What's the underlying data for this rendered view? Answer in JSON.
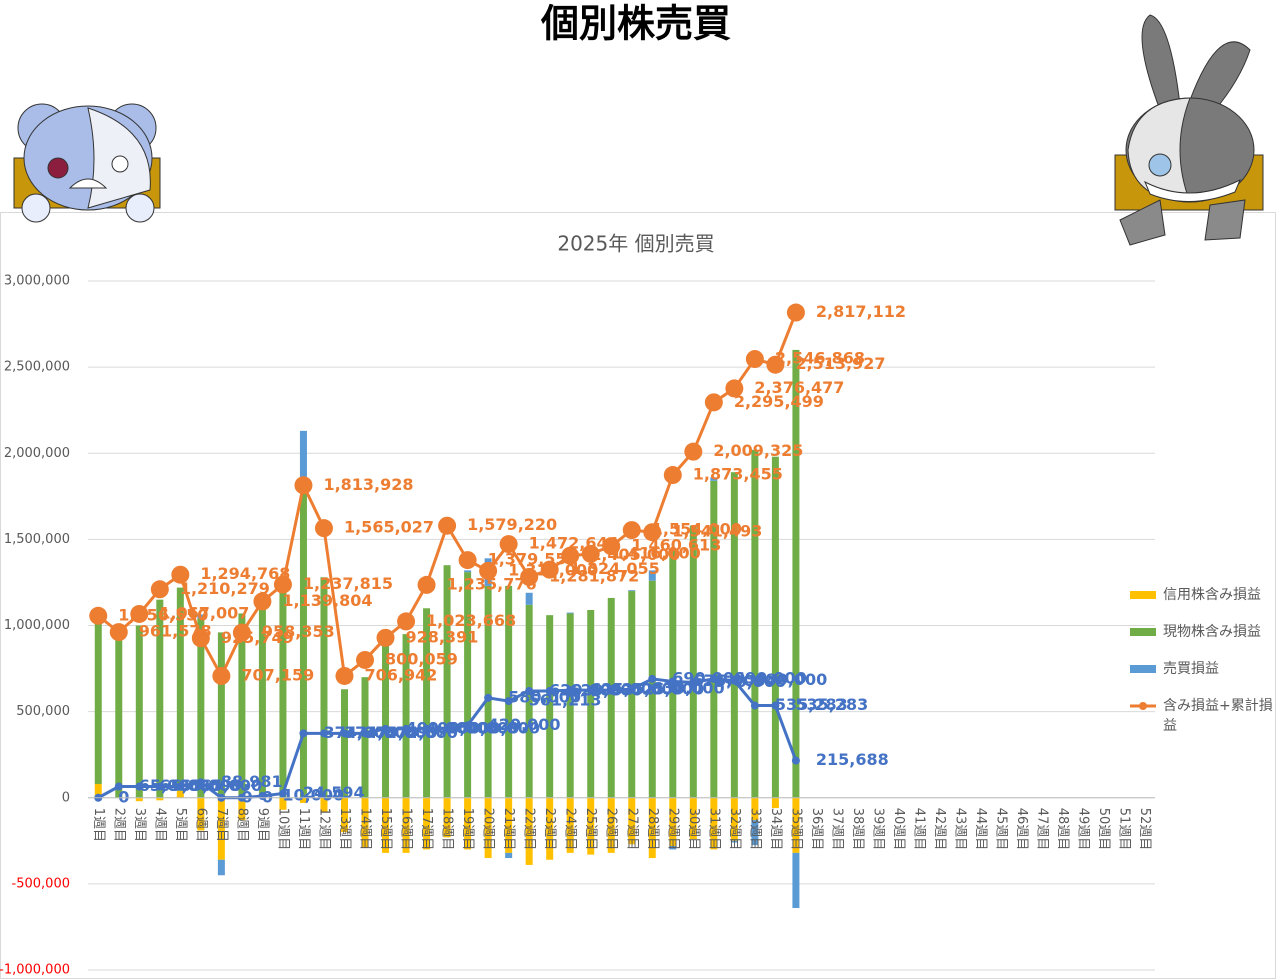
{
  "header": {
    "title": "個別株売買"
  },
  "chart_data": {
    "type": "bar",
    "stacked": true,
    "title": "2025年 個別売買",
    "categories": [
      "1週目",
      "2週目",
      "3週目",
      "4週目",
      "5週目",
      "6週目",
      "7週目",
      "8週目",
      "9週目",
      "10週目",
      "11週目",
      "12週目",
      "13週目",
      "14週目",
      "15週目",
      "16週目",
      "17週目",
      "18週目",
      "19週目",
      "20週目",
      "21週目",
      "22週目",
      "23週目",
      "24週目",
      "25週目",
      "26週目",
      "27週目",
      "28週目",
      "29週目",
      "30週目",
      "31週目",
      "32週目",
      "33週目",
      "34週目",
      "35週目",
      "36週目",
      "37週目",
      "38週目",
      "39週目",
      "40週目",
      "41週目",
      "42週目",
      "43週目",
      "44週目",
      "45週目",
      "46週目",
      "47週目",
      "48週目",
      "49週目",
      "50週目",
      "51週目",
      "52週目"
    ],
    "series": [
      {
        "name": "信用株含み損益",
        "type": "bar",
        "color": "#ffc000",
        "values": [
          80000,
          0,
          -20000,
          -15000,
          40000,
          -190000,
          -360000,
          -130000,
          0,
          -70000,
          -30000,
          -80000,
          -200000,
          -290000,
          -320000,
          -320000,
          -300000,
          -230000,
          -300000,
          -350000,
          -320000,
          -390000,
          -360000,
          -320000,
          -330000,
          -320000,
          -270000,
          -350000,
          -280000,
          -240000,
          -300000,
          -250000,
          -130000,
          -60000,
          -320000,
          null,
          null,
          null,
          null,
          null,
          null,
          null,
          null,
          null,
          null,
          null,
          null,
          null,
          null,
          null,
          null,
          null
        ]
      },
      {
        "name": "現物株含み損益",
        "type": "bar",
        "color": "#70ad47",
        "values": [
          950000,
          940000,
          1000000,
          1150000,
          1180000,
          1040000,
          960000,
          1070000,
          1120000,
          1200000,
          1780000,
          1280000,
          630000,
          700000,
          900000,
          950000,
          1100000,
          1350000,
          1310000,
          1230000,
          1230000,
          1120000,
          1060000,
          1070000,
          1090000,
          1160000,
          1200000,
          1260000,
          1440000,
          1580000,
          1840000,
          1890000,
          2020000,
          1980000,
          2600000,
          null,
          null,
          null,
          null,
          null,
          null,
          null,
          null,
          null,
          null,
          null,
          null,
          null,
          null,
          null,
          null,
          null
        ]
      },
      {
        "name": "売買損益",
        "type": "bar",
        "color": "#5b9bd5",
        "values": [
          0,
          65000,
          0,
          0,
          0,
          24000,
          -90000,
          0,
          10000,
          14000,
          350000,
          0,
          0,
          0,
          30000,
          0,
          0,
          0,
          10000,
          160000,
          -30000,
          70000,
          0,
          5000,
          0,
          0,
          5000,
          60000,
          -20000,
          0,
          20000,
          -10000,
          -145000,
          0,
          -320000,
          null,
          null,
          null,
          null,
          null,
          null,
          null,
          null,
          null,
          null,
          null,
          null,
          null,
          null,
          null,
          null,
          null
        ]
      },
      {
        "type": "line",
        "color": "#4472c4",
        "marker": 4,
        "values": [
          0,
          65000,
          65000,
          65000,
          65000,
          88981,
          0,
          0,
          10000,
          24594,
          374000,
          374000,
          374000,
          374000,
          400000,
          400000,
          400000,
          400000,
          420000,
          580000,
          561213,
          620000,
          620000,
          625000,
          625000,
          625000,
          630000,
          690000,
          675000,
          670000,
          690000,
          680000,
          535283,
          535283,
          215688,
          null,
          null,
          null,
          null,
          null,
          null,
          null,
          null,
          null,
          null,
          null,
          null,
          null,
          null,
          null,
          null,
          null
        ],
        "value_labels": [
          "0",
          "65,000",
          "65,000",
          "65,000",
          "65,000",
          "88,981",
          "0",
          "0",
          "10,000",
          "24,594",
          "374,000",
          "374,000",
          "374,000",
          "374,000",
          "400,000",
          "400,000",
          "400,000",
          "400,000",
          "420,000",
          "580,000",
          "561,213",
          "620,000",
          "620,000",
          "625,000",
          "625,000",
          "625,000",
          "630,000",
          "690,000",
          "675,000",
          "670,000",
          "690,000",
          "680,000",
          "535,283",
          "535,283",
          "215,688",
          null,
          null,
          null,
          null,
          null,
          null,
          null,
          null,
          null,
          null,
          null,
          null,
          null,
          null,
          null,
          null,
          null
        ]
      },
      {
        "name": "含み損益+累計損益",
        "type": "line",
        "color": "#ed7d31",
        "marker": 9,
        "values": [
          1056550,
          961578,
          1067007,
          1210279,
          1294768,
          925749,
          707159,
          958353,
          1139804,
          1237815,
          1813928,
          1565027,
          706942,
          800059,
          928391,
          1023668,
          1235776,
          1579220,
          1379555,
          1317000,
          1472644,
          1281872,
          1324055,
          1405000,
          1416000,
          1460613,
          1554000,
          1541493,
          1873455,
          2009325,
          2295499,
          2376477,
          2546868,
          2513927,
          2817112,
          null,
          null,
          null,
          null,
          null,
          null,
          null,
          null,
          null,
          null,
          null,
          null,
          null,
          null,
          null,
          null,
          null
        ],
        "value_labels": [
          "1,056,550",
          "961,578",
          "1,067,007",
          "1,210,279",
          "1,294,768",
          "925,749",
          "707,159",
          "958,353",
          "1,139,804",
          "1,237,815",
          "1,813,928",
          "1,565,027",
          "706,942",
          "800,059",
          "928,391",
          "1,023,668",
          "1,235,776",
          "1,579,220",
          "1,379,555",
          "1,317,000",
          "1,472,644",
          "1,281,872",
          "1,324,055",
          "1,405,000",
          "1,416,000",
          "1,460,613",
          "1,554,000",
          "1,541,493",
          "1,873,455",
          "2,009,325",
          "2,295,499",
          "2,376,477",
          "2,546,868",
          "2,513,927",
          "2,817,112",
          null,
          null,
          null,
          null,
          null,
          null,
          null,
          null,
          null,
          null,
          null,
          null,
          null,
          null,
          null,
          null,
          null
        ]
      }
    ],
    "ylim": [
      -1000000,
      3000000
    ],
    "yticks": [
      {
        "value": -1000000,
        "label": "-1,000,000"
      },
      {
        "value": -500000,
        "label": "-500,000"
      },
      0,
      {
        "value": 500000,
        "label": "500,000"
      },
      {
        "value": 1000000,
        "label": "1,000,000"
      },
      {
        "value": 1500000,
        "label": "1,500,000"
      },
      {
        "value": 2000000,
        "label": "2,000,000"
      },
      {
        "value": 2500000,
        "label": "2,500,000"
      },
      {
        "value": 3000000,
        "label": "3,000,000"
      }
    ],
    "negative_tick_color": "#ff0000",
    "grid": true,
    "legend": "right"
  }
}
